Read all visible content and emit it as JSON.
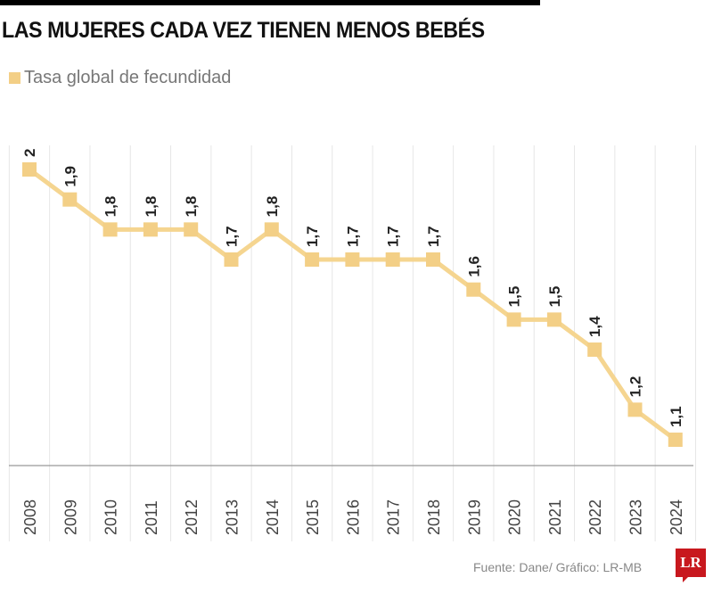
{
  "chart_data": {
    "type": "line",
    "title": "LAS MUJERES CADA VEZ TIENEN MENOS BEBÉS",
    "legend": [
      "Tasa global de fecundidad"
    ],
    "legend_placement": "top-left",
    "categories": [
      "2008",
      "2009",
      "2010",
      "2011",
      "2012",
      "2013",
      "2014",
      "2015",
      "2016",
      "2017",
      "2018",
      "2019",
      "2020",
      "2021",
      "2022",
      "2023",
      "2024"
    ],
    "series": [
      {
        "name": "Tasa global de fecundidad",
        "values": [
          2,
          1.9,
          1.8,
          1.8,
          1.8,
          1.7,
          1.8,
          1.7,
          1.7,
          1.7,
          1.7,
          1.6,
          1.5,
          1.5,
          1.4,
          1.2,
          1.1
        ]
      }
    ],
    "data_labels": [
      "2",
      "1,9",
      "1,8",
      "1,8",
      "1,8",
      "1,7",
      "1,8",
      "1,7",
      "1,7",
      "1,7",
      "1,7",
      "1,6",
      "1,5",
      "1,5",
      "1,4",
      "1,2",
      "1,1"
    ],
    "grid": "vertical",
    "y_axis_visible": false,
    "colors": {
      "series": "#f5d590",
      "marker": "#f3cf86"
    }
  },
  "source": "Fuente: Dane/ Gráfico: LR-MB",
  "logo": "LR"
}
